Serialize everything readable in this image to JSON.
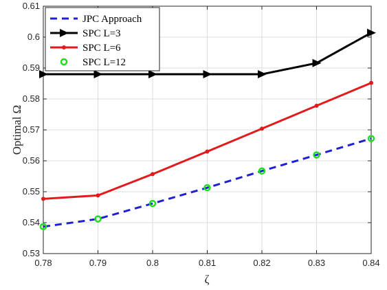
{
  "chart_data": {
    "type": "line",
    "xlabel": "ζ",
    "ylabel": "Optimal Ω",
    "xlim": [
      0.78,
      0.84
    ],
    "ylim": [
      0.53,
      0.61
    ],
    "x_ticks": [
      "0.78",
      "0.79",
      "0.8",
      "0.81",
      "0.82",
      "0.83",
      "0.84"
    ],
    "y_ticks": [
      "0.53",
      "0.54",
      "0.55",
      "0.56",
      "0.57",
      "0.58",
      "0.59",
      "0.6",
      "0.61"
    ],
    "grid": true,
    "legend_position": "top-left",
    "x": [
      0.78,
      0.79,
      0.8,
      0.81,
      0.82,
      0.83,
      0.84
    ],
    "series": [
      {
        "name": "JPC Approach",
        "values": [
          0.5387,
          0.5412,
          0.5462,
          0.5513,
          0.5567,
          0.5619,
          0.5672
        ],
        "color": "#1f1fd6",
        "style": "dashed",
        "marker": "none"
      },
      {
        "name": "SPC L=3",
        "values": [
          0.588,
          0.588,
          0.588,
          0.588,
          0.588,
          0.5916,
          0.6014
        ],
        "color": "#000000",
        "style": "solid",
        "marker": "triangle-right"
      },
      {
        "name": "SPC L=6",
        "values": [
          0.5477,
          0.5488,
          0.5557,
          0.563,
          0.5704,
          0.5778,
          0.5852
        ],
        "color": "#e31a1c",
        "style": "solid",
        "marker": "dot"
      },
      {
        "name": "SPC L=12",
        "values": [
          0.5387,
          0.5412,
          0.5462,
          0.5513,
          0.5567,
          0.5619,
          0.5672
        ],
        "color": "#22dd22",
        "style": "none",
        "marker": "circle"
      }
    ]
  }
}
